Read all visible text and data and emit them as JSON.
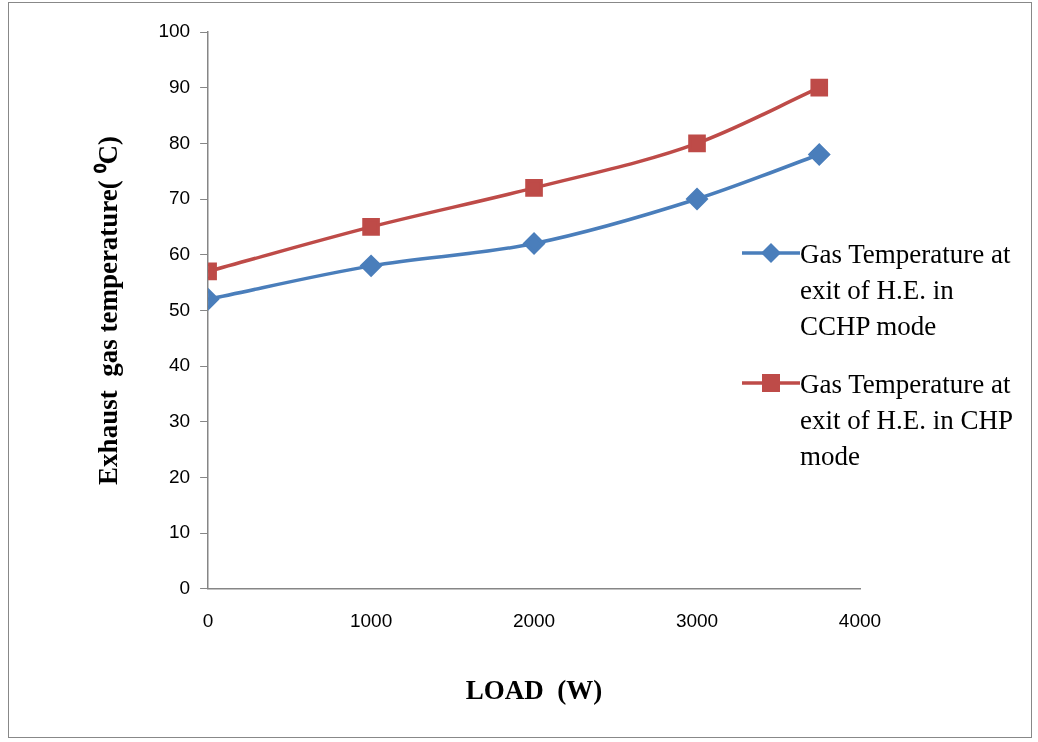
{
  "chart_data": {
    "type": "line",
    "xlabel": "LOAD  (W)",
    "ylabel": "Exhaust  gas temperature( ⁰C)",
    "xlim": [
      0,
      4000
    ],
    "xticks": [
      0,
      1000,
      2000,
      3000,
      4000
    ],
    "ylim": [
      0,
      100
    ],
    "yticks": [
      0,
      10,
      20,
      30,
      40,
      50,
      60,
      70,
      80,
      90,
      100
    ],
    "grid": false,
    "legend": "right",
    "line_style": "solid",
    "series": [
      {
        "name": "Gas Temperature at exit of H.E. in CCHP mode",
        "color": "#4a7ebb",
        "marker": "diamond",
        "x": [
          0,
          1000,
          2000,
          3000,
          3750
        ],
        "values": [
          52,
          58,
          62,
          70,
          78
        ]
      },
      {
        "name": "Gas Temperature at exit of H.E. in CHP mode",
        "color": "#be4b48",
        "marker": "square",
        "x": [
          0,
          1000,
          2000,
          3000,
          3750
        ],
        "values": [
          57,
          65,
          72,
          80,
          90
        ]
      }
    ]
  }
}
